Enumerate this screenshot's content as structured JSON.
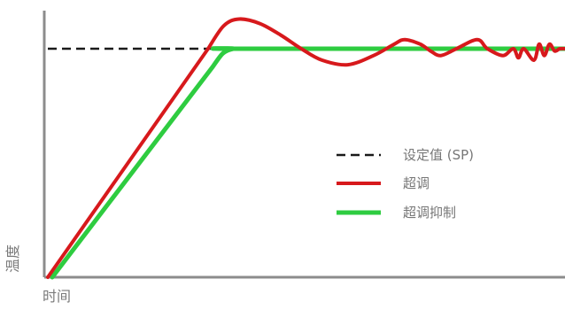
{
  "chart_data": {
    "type": "line",
    "xlabel": "时间",
    "ylabel": "温度",
    "grid": false,
    "legend_placement": "center-right",
    "colors": {
      "axis": "#8c8c8c",
      "setpoint": "#1a1a1a",
      "overshoot": "#d7191c",
      "suppressed": "#2ecc40"
    },
    "series": [
      {
        "name": "设定值 (SP)",
        "style": "dashed",
        "x": [
          0,
          100
        ],
        "y": [
          100,
          100
        ]
      },
      {
        "name": "超调",
        "style": "solid",
        "x": [
          0,
          31,
          34,
          37,
          41,
          45,
          49,
          53,
          58,
          63,
          67,
          69,
          72,
          74,
          76,
          79,
          83,
          85,
          88,
          90,
          91,
          92,
          94,
          95,
          96,
          97,
          98,
          99,
          100
        ],
        "y": [
          0,
          100,
          110,
          113,
          111,
          106,
          100,
          95,
          93,
          97,
          102,
          104,
          102,
          99,
          97,
          100,
          104,
          100,
          97,
          100,
          96,
          100,
          95,
          102,
          97,
          102,
          99,
          100,
          100
        ]
      },
      {
        "name": "超调抑制",
        "style": "solid",
        "x": [
          0,
          31,
          33,
          35,
          36,
          100
        ],
        "y": [
          0,
          92,
          98,
          100,
          100,
          100
        ]
      }
    ]
  }
}
